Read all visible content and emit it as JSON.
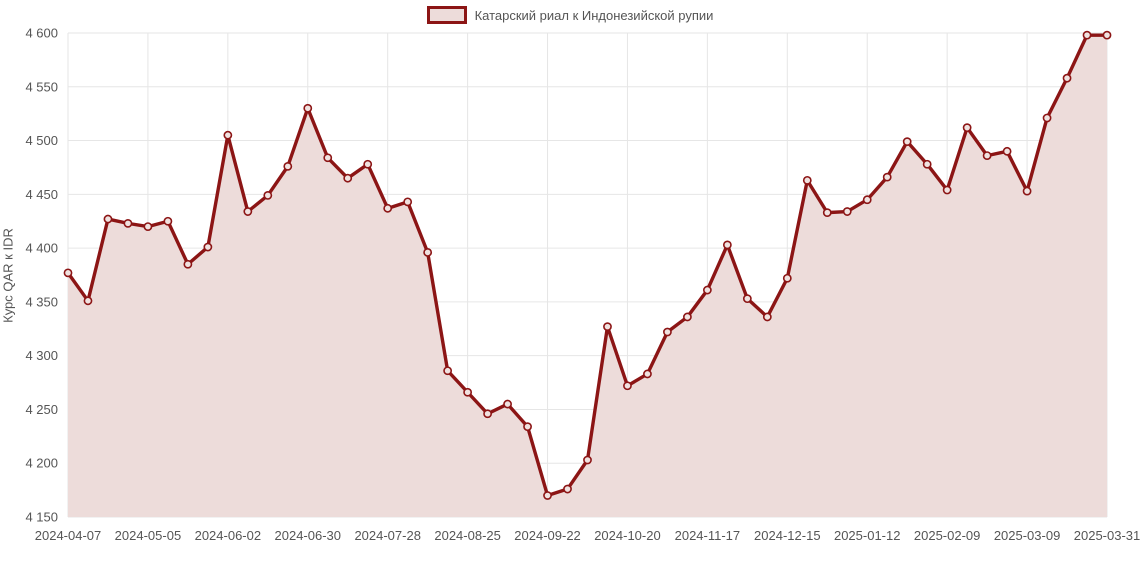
{
  "legend_label": "Катарский риал к Индонезийской рупии",
  "chart_data": {
    "type": "area",
    "title": "",
    "ylabel": "Курс QAR к IDR",
    "xlabel": "",
    "legend": [
      "Катарский риал к Индонезийской рупии"
    ],
    "legend_position": "top-center",
    "grid": true,
    "ylim": [
      4150,
      4600
    ],
    "ytick_step": 50,
    "values": [
      4377,
      4351,
      4427,
      4423,
      4420,
      4425,
      4385,
      4401,
      4505,
      4434,
      4449,
      4476,
      4530,
      4484,
      4465,
      4478,
      4437,
      4443,
      4396,
      4286,
      4266,
      4246,
      4255,
      4234,
      4170,
      4176,
      4203,
      4327,
      4272,
      4283,
      4322,
      4336,
      4361,
      4403,
      4353,
      4336,
      4372,
      4463,
      4433,
      4434,
      4445,
      4466,
      4499,
      4478,
      4454,
      4512,
      4486,
      4490,
      4453,
      4521,
      4558,
      4598,
      4598
    ],
    "x_ticks": [
      {
        "index": 0,
        "label": "2024-04-07"
      },
      {
        "index": 4,
        "label": "2024-05-05"
      },
      {
        "index": 8,
        "label": "2024-06-02"
      },
      {
        "index": 12,
        "label": "2024-06-30"
      },
      {
        "index": 16,
        "label": "2024-07-28"
      },
      {
        "index": 20,
        "label": "2024-08-25"
      },
      {
        "index": 24,
        "label": "2024-09-22"
      },
      {
        "index": 28,
        "label": "2024-10-20"
      },
      {
        "index": 32,
        "label": "2024-11-17"
      },
      {
        "index": 36,
        "label": "2024-12-15"
      },
      {
        "index": 40,
        "label": "2025-01-12"
      },
      {
        "index": 44,
        "label": "2025-02-09"
      },
      {
        "index": 48,
        "label": "2025-03-09"
      },
      {
        "index": 52,
        "label": "2025-03-31"
      }
    ],
    "colors": {
      "line": "#8c1515",
      "area_fill": "#eddcda",
      "marker_fill": "#f0e2e0",
      "grid": "#e6e6e6",
      "text": "#555555"
    }
  }
}
